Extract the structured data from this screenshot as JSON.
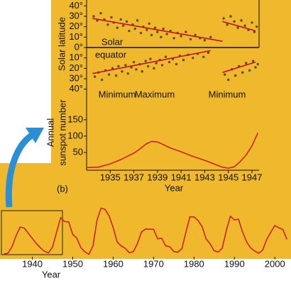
{
  "chart_data": [
    {
      "type": "scatter",
      "y_label": "Solar latitude",
      "annotation": [
        "Solar",
        "equator"
      ],
      "phase_labels": [
        "Minimum",
        "Maximum",
        "Minimum"
      ],
      "color": "#3d3d1c",
      "xlim": [
        1933,
        1947.6
      ],
      "ylim": [
        -45,
        45
      ],
      "yticks": [
        {
          "value": 40,
          "label": "40°"
        },
        {
          "value": 30,
          "label": "30°"
        },
        {
          "value": 20,
          "label": "20°"
        },
        {
          "value": 10,
          "label": "10°"
        },
        {
          "value": 0,
          "label": "0°"
        },
        {
          "value": -10,
          "label": "10°"
        },
        {
          "value": -20,
          "label": "20°"
        },
        {
          "value": -30,
          "label": "30°"
        },
        {
          "value": -40,
          "label": "40°"
        }
      ],
      "x": [
        1933.6,
        1933.9,
        1934.2,
        1934.5,
        1934.8,
        1935.1,
        1935.3,
        1935.6,
        1935.9,
        1936.1,
        1936.4,
        1936.6,
        1936.9,
        1937.1,
        1937.3,
        1937.6,
        1937.8,
        1938.1,
        1938.3,
        1938.5,
        1938.8,
        1939.0,
        1939.3,
        1939.5,
        1939.8,
        1940.1,
        1940.4,
        1940.7,
        1941.0,
        1941.4,
        1941.8,
        1942.2,
        1942.6,
        1943.0,
        1943.5,
        1933.7,
        1934.0,
        1934.3,
        1934.6,
        1934.9,
        1935.2,
        1935.5,
        1935.7,
        1936.0,
        1936.3,
        1936.5,
        1936.8,
        1937.0,
        1937.2,
        1937.5,
        1937.7,
        1938.0,
        1938.2,
        1938.4,
        1938.7,
        1938.9,
        1939.2,
        1939.4,
        1939.7,
        1940.0,
        1940.3,
        1940.6,
        1940.9,
        1941.2,
        1941.6,
        1942.0,
        1942.4,
        1942.9,
        1943.3,
        1944.6,
        1944.9,
        1945.2,
        1945.5,
        1945.8,
        1946.1,
        1946.4,
        1946.7,
        1947.0,
        1947.2,
        1947.4,
        1944.7,
        1945.0,
        1945.3,
        1945.6,
        1945.9,
        1946.2,
        1946.5,
        1946.8,
        1947.1,
        1947.3,
        1947.5
      ],
      "values": [
        30,
        26,
        33,
        27,
        22,
        29,
        24,
        19,
        27,
        21,
        25,
        16,
        22,
        18,
        26,
        14,
        20,
        17,
        23,
        12,
        19,
        15,
        10,
        18,
        13,
        16,
        9,
        14,
        11,
        15,
        8,
        12,
        9,
        7,
        10,
        -28,
        -24,
        -31,
        -22,
        -26,
        -20,
        -27,
        -18,
        -23,
        -17,
        -25,
        -19,
        -14,
        -21,
        -16,
        -23,
        -13,
        -18,
        -11,
        -20,
        -15,
        -12,
        -17,
        -9,
        -14,
        -11,
        -16,
        -8,
        -12,
        -7,
        -10,
        -6,
        -9,
        -5,
        28,
        22,
        30,
        25,
        19,
        26,
        21,
        17,
        24,
        15,
        20,
        -26,
        -31,
        -21,
        -27,
        -18,
        -24,
        -15,
        -22,
        -13,
        -19,
        -16
      ],
      "trend_lines": [
        {
          "color": "#c8102e",
          "x": [
            1933.5,
            1944.5
          ],
          "values": [
            28,
            6
          ]
        },
        {
          "color": "#c8102e",
          "x": [
            1933.5,
            1943.5
          ],
          "values": [
            -25,
            -3
          ]
        },
        {
          "color": "#c8102e",
          "x": [
            1944.5,
            1947.3
          ],
          "values": [
            25,
            16
          ]
        },
        {
          "color": "#c8102e",
          "x": [
            1944.5,
            1947.3
          ],
          "values": [
            -24,
            -14
          ]
        }
      ]
    },
    {
      "type": "line",
      "y_label": [
        "Annual",
        "sunspot number"
      ],
      "x_label": "Year",
      "panel_label": "(b)",
      "color": "#d0202a",
      "xlim": [
        1933,
        1947.6
      ],
      "ylim": [
        0,
        180
      ],
      "xticks": [
        1935,
        1937,
        1939,
        1941,
        1943,
        1945,
        1947
      ],
      "yticks": [
        50,
        100,
        150
      ],
      "x": [
        1933,
        1934,
        1935,
        1936,
        1937,
        1937.5,
        1938,
        1938.5,
        1939,
        1939.5,
        1940,
        1941,
        1942,
        1943,
        1944,
        1944.5,
        1945,
        1945.5,
        1946,
        1946.5,
        1947,
        1947.5
      ],
      "values": [
        4,
        5,
        15,
        30,
        48,
        60,
        75,
        84,
        82,
        74,
        65,
        52,
        38,
        26,
        12,
        5,
        2,
        6,
        22,
        42,
        70,
        110
      ]
    },
    {
      "type": "line",
      "x_label": "Year",
      "color": "#d0202a",
      "xlim": [
        1932,
        2004
      ],
      "ylim": [
        0,
        200
      ],
      "xticks": [
        1940,
        1950,
        1960,
        1970,
        1980,
        1990,
        2000
      ],
      "x": [
        1933,
        1934,
        1935,
        1936,
        1937,
        1938,
        1939,
        1940,
        1941,
        1942,
        1943,
        1944,
        1945,
        1946,
        1947,
        1948,
        1949,
        1950,
        1951,
        1952,
        1953,
        1954,
        1955,
        1956,
        1957,
        1958,
        1959,
        1960,
        1961,
        1962,
        1963,
        1964,
        1965,
        1966,
        1967,
        1968,
        1969,
        1970,
        1971,
        1972,
        1973,
        1974,
        1975,
        1976,
        1977,
        1978,
        1979,
        1980,
        1981,
        1982,
        1983,
        1984,
        1985,
        1986,
        1987,
        1988,
        1989,
        1990,
        1991,
        1992,
        1993,
        1994,
        1995,
        1996,
        1997,
        1998,
        1999,
        2000,
        2001,
        2002,
        2003
      ],
      "values": [
        5.7,
        8.7,
        36.1,
        79.7,
        114.4,
        109.6,
        88.8,
        67.8,
        47.5,
        30.6,
        16.3,
        9.6,
        33.2,
        92.6,
        151.6,
        136.3,
        134.7,
        83.9,
        69.4,
        31.5,
        13.9,
        4.4,
        38.0,
        141.7,
        190.2,
        184.8,
        159.0,
        112.3,
        53.9,
        37.6,
        27.9,
        10.2,
        15.1,
        47.0,
        93.8,
        105.9,
        105.5,
        104.5,
        66.6,
        68.9,
        38.0,
        34.5,
        15.5,
        12.6,
        27.5,
        92.5,
        155.4,
        154.6,
        140.4,
        115.9,
        66.6,
        45.9,
        17.9,
        13.4,
        29.4,
        100.2,
        157.6,
        142.6,
        145.7,
        94.3,
        54.6,
        29.9,
        17.5,
        8.6,
        21.5,
        64.3,
        93.3,
        119.6,
        111.0,
        104.0,
        63.7
      ]
    }
  ]
}
